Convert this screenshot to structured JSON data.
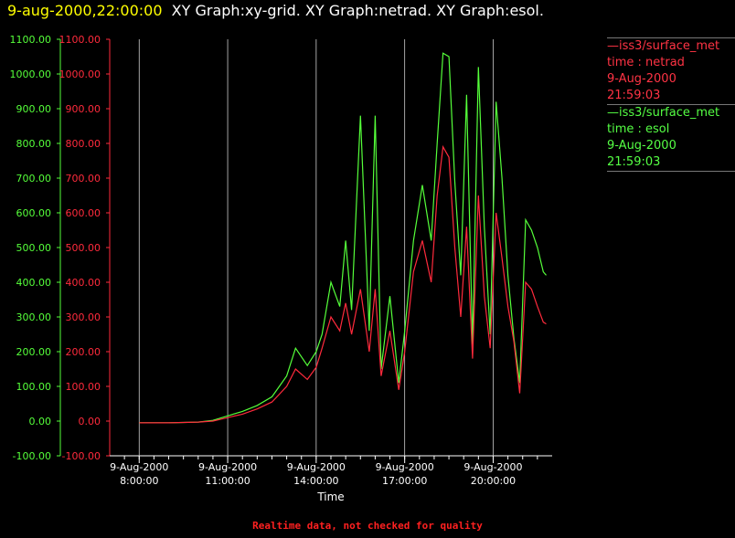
{
  "header": {
    "date": "9-aug-2000,22:00:00",
    "graphs": "XY Graph:xy-grid.  XY Graph:netrad.  XY Graph:esol."
  },
  "colors": {
    "netrad": "#ff2a3c",
    "esol": "#55ff3a",
    "grid": "#cccccc",
    "title_date": "#ffff00",
    "footer": "#ff2020"
  },
  "legend": [
    {
      "key": "netrad",
      "lines": [
        "—iss3/surface_met",
        "time : netrad",
        "9-Aug-2000",
        "21:59:03"
      ]
    },
    {
      "key": "esol",
      "lines": [
        "—iss3/surface_met",
        "time : esol",
        "9-Aug-2000",
        "21:59:03"
      ]
    }
  ],
  "footer": "Realtime data, not checked for quality",
  "chart_data": {
    "type": "line",
    "xlabel": "Time",
    "ylim": [
      -100,
      1100
    ],
    "xlim_hours": [
      7.0,
      22.0
    ],
    "y_ticks": [
      "1100.00",
      "1000.00",
      "900.00",
      "800.00",
      "700.00",
      "600.00",
      "500.00",
      "400.00",
      "300.00",
      "200.00",
      "100.00",
      "0.00",
      "-100.00"
    ],
    "x_ticks": [
      {
        "date": "9-Aug-2000",
        "time": "8:00:00",
        "h": 8
      },
      {
        "date": "9-Aug-2000",
        "time": "11:00:00",
        "h": 11
      },
      {
        "date": "9-Aug-2000",
        "time": "14:00:00",
        "h": 14
      },
      {
        "date": "9-Aug-2000",
        "time": "17:00:00",
        "h": 17
      },
      {
        "date": "9-Aug-2000",
        "time": "20:00:00",
        "h": 20
      }
    ],
    "grid": "vertical lines at major ticks",
    "series": [
      {
        "name": "netrad",
        "axis": "inner",
        "points": [
          [
            8.0,
            -5
          ],
          [
            9.0,
            -5
          ],
          [
            10.0,
            -3
          ],
          [
            10.5,
            0
          ],
          [
            11.0,
            10
          ],
          [
            11.5,
            20
          ],
          [
            12.0,
            35
          ],
          [
            12.5,
            55
          ],
          [
            13.0,
            100
          ],
          [
            13.3,
            150
          ],
          [
            13.7,
            120
          ],
          [
            14.0,
            155
          ],
          [
            14.2,
            210
          ],
          [
            14.5,
            300
          ],
          [
            14.8,
            260
          ],
          [
            15.0,
            340
          ],
          [
            15.2,
            250
          ],
          [
            15.5,
            380
          ],
          [
            15.8,
            200
          ],
          [
            16.0,
            380
          ],
          [
            16.2,
            130
          ],
          [
            16.5,
            260
          ],
          [
            16.8,
            90
          ],
          [
            17.0,
            200
          ],
          [
            17.3,
            430
          ],
          [
            17.6,
            520
          ],
          [
            17.9,
            400
          ],
          [
            18.1,
            650
          ],
          [
            18.3,
            790
          ],
          [
            18.5,
            760
          ],
          [
            18.7,
            500
          ],
          [
            18.9,
            300
          ],
          [
            19.1,
            560
          ],
          [
            19.3,
            180
          ],
          [
            19.5,
            650
          ],
          [
            19.7,
            360
          ],
          [
            19.9,
            210
          ],
          [
            20.1,
            600
          ],
          [
            20.3,
            470
          ],
          [
            20.5,
            330
          ],
          [
            20.7,
            230
          ],
          [
            20.9,
            80
          ],
          [
            21.1,
            400
          ],
          [
            21.3,
            380
          ],
          [
            21.5,
            330
          ],
          [
            21.7,
            285
          ],
          [
            21.8,
            280
          ]
        ]
      },
      {
        "name": "esol",
        "axis": "outer",
        "points": [
          [
            8.0,
            -5
          ],
          [
            9.0,
            -5
          ],
          [
            10.0,
            -3
          ],
          [
            10.5,
            2
          ],
          [
            11.0,
            15
          ],
          [
            11.5,
            28
          ],
          [
            12.0,
            45
          ],
          [
            12.5,
            70
          ],
          [
            13.0,
            130
          ],
          [
            13.3,
            210
          ],
          [
            13.7,
            160
          ],
          [
            14.0,
            200
          ],
          [
            14.2,
            250
          ],
          [
            14.5,
            400
          ],
          [
            14.8,
            330
          ],
          [
            15.0,
            520
          ],
          [
            15.2,
            320
          ],
          [
            15.5,
            880
          ],
          [
            15.8,
            260
          ],
          [
            16.0,
            880
          ],
          [
            16.2,
            150
          ],
          [
            16.5,
            360
          ],
          [
            16.8,
            110
          ],
          [
            17.0,
            260
          ],
          [
            17.3,
            520
          ],
          [
            17.6,
            680
          ],
          [
            17.9,
            520
          ],
          [
            18.1,
            800
          ],
          [
            18.3,
            1060
          ],
          [
            18.5,
            1050
          ],
          [
            18.7,
            690
          ],
          [
            18.9,
            420
          ],
          [
            19.1,
            940
          ],
          [
            19.3,
            220
          ],
          [
            19.5,
            1020
          ],
          [
            19.7,
            560
          ],
          [
            19.9,
            250
          ],
          [
            20.1,
            920
          ],
          [
            20.3,
            700
          ],
          [
            20.5,
            420
          ],
          [
            20.7,
            240
          ],
          [
            20.9,
            110
          ],
          [
            21.1,
            580
          ],
          [
            21.3,
            550
          ],
          [
            21.5,
            500
          ],
          [
            21.7,
            430
          ],
          [
            21.8,
            420
          ]
        ]
      }
    ]
  }
}
